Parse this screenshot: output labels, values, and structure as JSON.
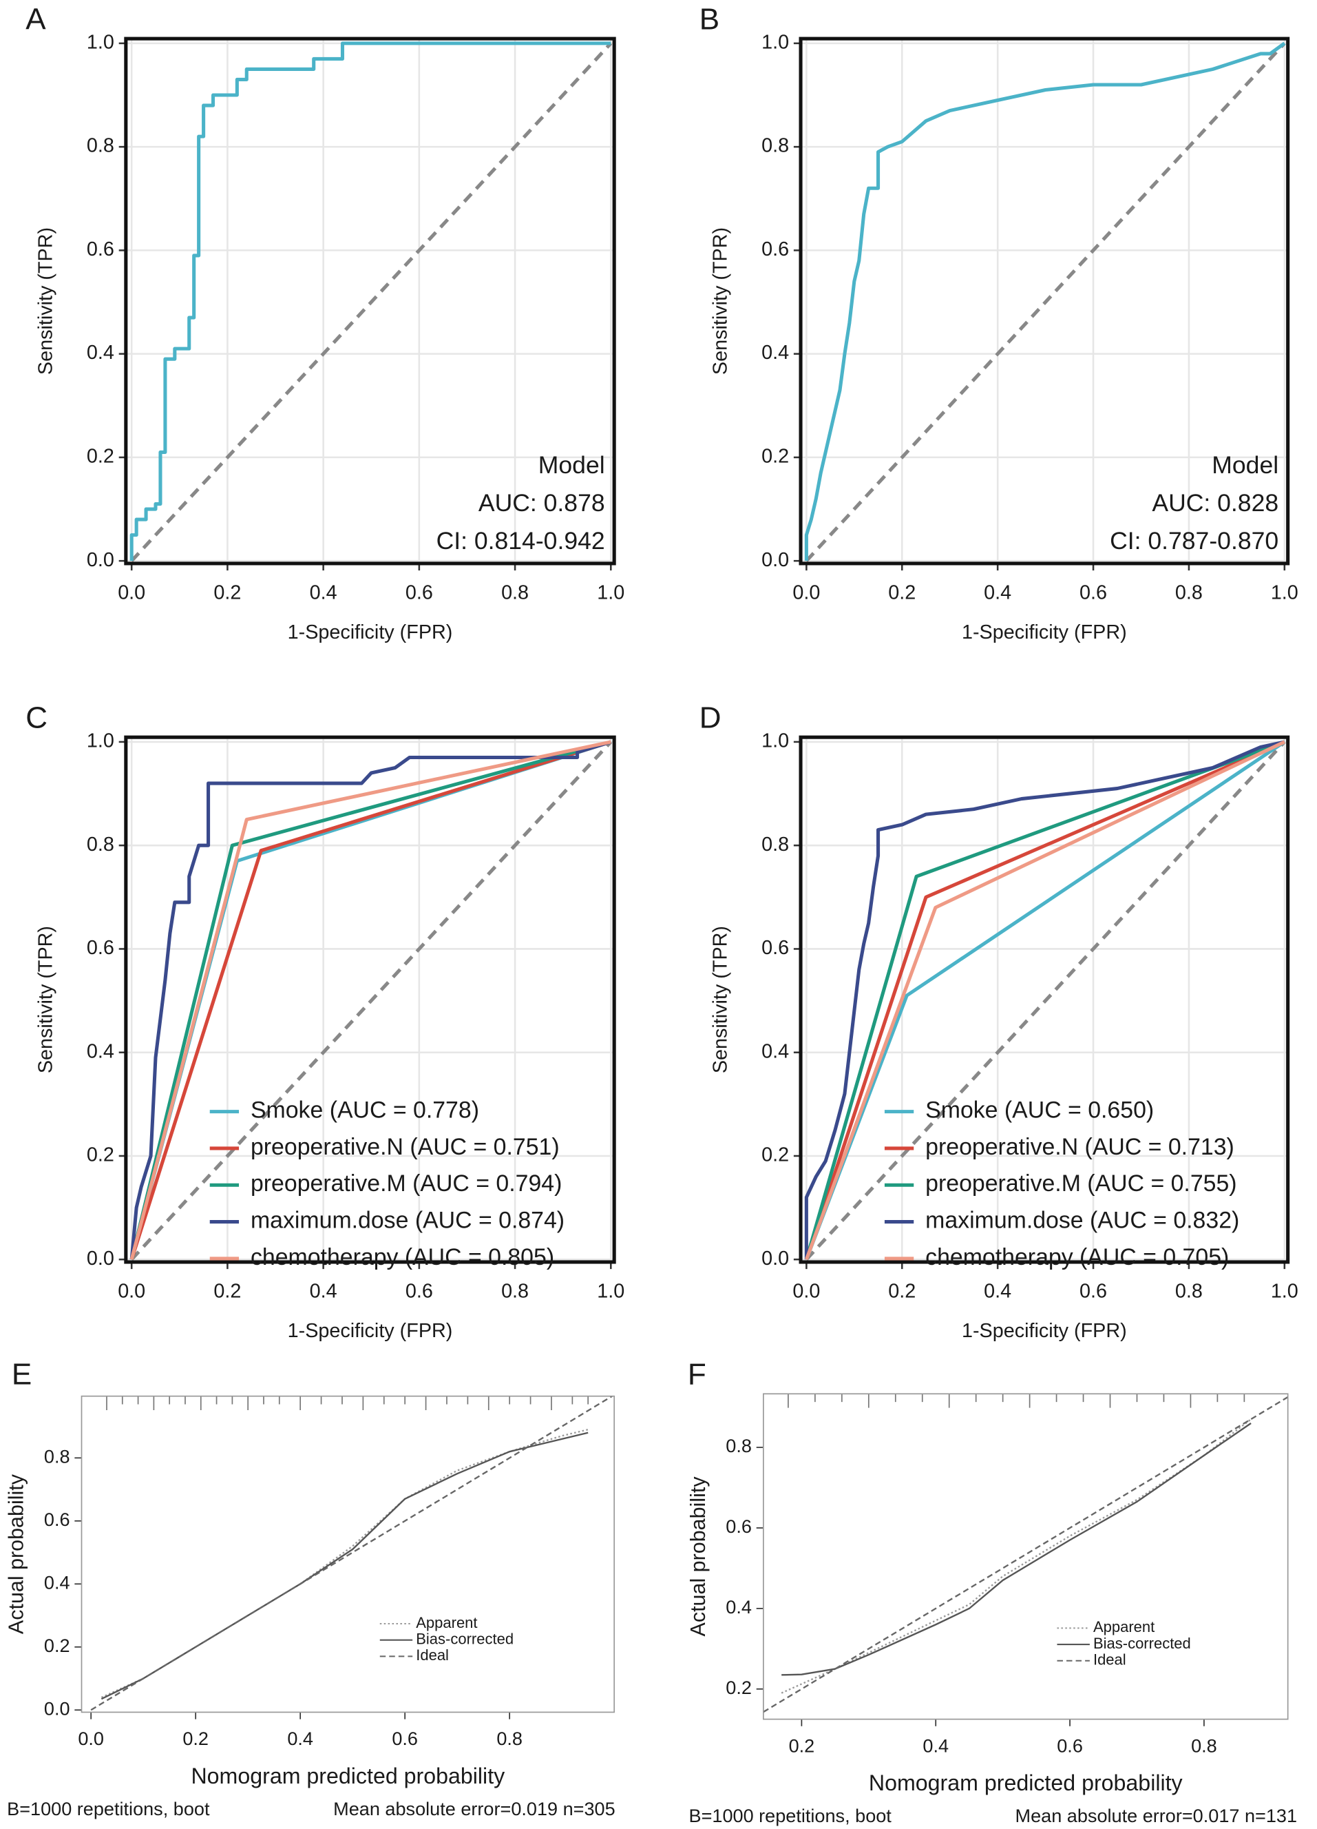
{
  "chart_data": [
    {
      "type": "line",
      "panel": "A",
      "frame": "heavy",
      "grid": true,
      "reference_line": true,
      "xlabel": "1-Specificity (FPR)",
      "ylabel": "Sensitivity (TPR)",
      "xlim": [
        -0.012,
        1.007
      ],
      "ylim": [
        -0.005,
        1.009
      ],
      "xticks": [
        {
          "value": 0,
          "label": "0.0"
        },
        0.2,
        0.4,
        0.6,
        0.8,
        {
          "value": 1,
          "label": "1.0"
        }
      ],
      "yticks": [
        {
          "value": 0,
          "label": "0.0"
        },
        0.2,
        0.4,
        0.6,
        0.8,
        {
          "value": 1,
          "label": "1.0"
        }
      ],
      "annotations": [
        "Model",
        "AUC: 0.878",
        "CI: 0.814-0.942"
      ],
      "series": [
        {
          "color": "#4bb3c8",
          "x": [
            0,
            0,
            0.01,
            0.01,
            0.03,
            0.03,
            0.05,
            0.05,
            0.06,
            0.06,
            0.07,
            0.07,
            0.09,
            0.09,
            0.12,
            0.12,
            0.13,
            0.13,
            0.14,
            0.14,
            0.15,
            0.15,
            0.17,
            0.17,
            0.22,
            0.22,
            0.24,
            0.24,
            0.38,
            0.38,
            0.44,
            0.44,
            1
          ],
          "values": [
            0,
            0.05,
            0.05,
            0.08,
            0.08,
            0.1,
            0.1,
            0.11,
            0.11,
            0.21,
            0.21,
            0.39,
            0.39,
            0.41,
            0.41,
            0.47,
            0.47,
            0.59,
            0.59,
            0.82,
            0.82,
            0.88,
            0.88,
            0.9,
            0.9,
            0.93,
            0.93,
            0.95,
            0.95,
            0.97,
            0.97,
            1,
            1
          ]
        }
      ]
    },
    {
      "type": "line",
      "panel": "B",
      "frame": "heavy",
      "grid": true,
      "reference_line": true,
      "xlabel": "1-Specificity (FPR)",
      "ylabel": "Sensitivity (TPR)",
      "xlim": [
        -0.012,
        1.007
      ],
      "ylim": [
        -0.005,
        1.009
      ],
      "xticks": [
        {
          "value": 0,
          "label": "0.0"
        },
        0.2,
        0.4,
        0.6,
        0.8,
        {
          "value": 1,
          "label": "1.0"
        }
      ],
      "yticks": [
        {
          "value": 0,
          "label": "0.0"
        },
        0.2,
        0.4,
        0.6,
        0.8,
        {
          "value": 1,
          "label": "1.0"
        }
      ],
      "annotations": [
        "Model",
        "AUC: 0.828",
        "CI: 0.787-0.870"
      ],
      "series": [
        {
          "color": "#4bb3c8",
          "x": [
            0,
            0,
            0.01,
            0.02,
            0.03,
            0.04,
            0.05,
            0.06,
            0.07,
            0.08,
            0.09,
            0.1,
            0.11,
            0.12,
            0.13,
            0.15,
            0.15,
            0.17,
            0.2,
            0.25,
            0.3,
            0.4,
            0.5,
            0.6,
            0.7,
            0.75,
            0.85,
            0.95,
            0.97,
            1
          ],
          "values": [
            0,
            0.05,
            0.08,
            0.12,
            0.17,
            0.21,
            0.25,
            0.29,
            0.33,
            0.4,
            0.46,
            0.54,
            0.58,
            0.67,
            0.72,
            0.72,
            0.79,
            0.8,
            0.81,
            0.85,
            0.87,
            0.89,
            0.91,
            0.92,
            0.92,
            0.93,
            0.95,
            0.98,
            0.98,
            1
          ]
        }
      ]
    },
    {
      "type": "line",
      "panel": "C",
      "frame": "heavy",
      "grid": true,
      "reference_line": true,
      "legend": "bottom-left",
      "xlabel": "1-Specificity (FPR)",
      "ylabel": "Sensitivity (TPR)",
      "xlim": [
        -0.012,
        1.007
      ],
      "ylim": [
        -0.005,
        1.009
      ],
      "xticks": [
        {
          "value": 0,
          "label": "0.0"
        },
        0.2,
        0.4,
        0.6,
        0.8,
        {
          "value": 1,
          "label": "1.0"
        }
      ],
      "yticks": [
        {
          "value": 0,
          "label": "0.0"
        },
        0.2,
        0.4,
        0.6,
        0.8,
        {
          "value": 1,
          "label": "1.0"
        }
      ],
      "series": [
        {
          "name": "Smoke (AUC = 0.778)",
          "color": "#4bb3c8",
          "x": [
            0,
            0.22,
            1
          ],
          "values": [
            0,
            0.77,
            1
          ]
        },
        {
          "name": "preoperative.N (AUC = 0.751)",
          "color": "#d6473a",
          "x": [
            0,
            0.27,
            1
          ],
          "values": [
            0,
            0.79,
            1
          ]
        },
        {
          "name": "preoperative.M (AUC = 0.794)",
          "color": "#1f9a7f",
          "x": [
            0,
            0.21,
            1
          ],
          "values": [
            0,
            0.8,
            1
          ]
        },
        {
          "name": "maximum.dose (AUC = 0.874)",
          "color": "#3a4a8c",
          "x": [
            0,
            0.01,
            0.02,
            0.04,
            0.05,
            0.07,
            0.08,
            0.09,
            0.12,
            0.12,
            0.14,
            0.16,
            0.16,
            0.48,
            0.5,
            0.55,
            0.58,
            0.93,
            0.93,
            1
          ],
          "values": [
            0,
            0.1,
            0.14,
            0.2,
            0.39,
            0.54,
            0.63,
            0.69,
            0.69,
            0.74,
            0.8,
            0.8,
            0.92,
            0.92,
            0.94,
            0.95,
            0.97,
            0.97,
            0.98,
            1
          ]
        },
        {
          "name": "chemotherapy (AUC = 0.805)",
          "color": "#ef9a85",
          "x": [
            0,
            0.24,
            1
          ],
          "values": [
            0,
            0.85,
            1
          ]
        }
      ]
    },
    {
      "type": "line",
      "panel": "D",
      "frame": "heavy",
      "grid": true,
      "reference_line": true,
      "legend": "bottom-left",
      "xlabel": "1-Specificity (FPR)",
      "ylabel": "Sensitivity (TPR)",
      "xlim": [
        -0.012,
        1.007
      ],
      "ylim": [
        -0.005,
        1.009
      ],
      "xticks": [
        {
          "value": 0,
          "label": "0.0"
        },
        0.2,
        0.4,
        0.6,
        0.8,
        {
          "value": 1,
          "label": "1.0"
        }
      ],
      "yticks": [
        {
          "value": 0,
          "label": "0.0"
        },
        0.2,
        0.4,
        0.6,
        0.8,
        {
          "value": 1,
          "label": "1.0"
        }
      ],
      "series": [
        {
          "name": "Smoke (AUC = 0.650)",
          "color": "#4bb3c8",
          "x": [
            0,
            0.21,
            1
          ],
          "values": [
            0,
            0.51,
            1
          ]
        },
        {
          "name": "preoperative.N (AUC = 0.713)",
          "color": "#d6473a",
          "x": [
            0,
            0.25,
            1
          ],
          "values": [
            0,
            0.7,
            1
          ]
        },
        {
          "name": "preoperative.M (AUC = 0.755)",
          "color": "#1f9a7f",
          "x": [
            0,
            0.23,
            1
          ],
          "values": [
            0,
            0.74,
            1
          ]
        },
        {
          "name": "maximum.dose (AUC = 0.832)",
          "color": "#3a4a8c",
          "x": [
            0,
            0,
            0.02,
            0.04,
            0.06,
            0.08,
            0.09,
            0.1,
            0.11,
            0.12,
            0.13,
            0.14,
            0.15,
            0.15,
            0.2,
            0.25,
            0.35,
            0.45,
            0.55,
            0.65,
            0.75,
            0.85,
            0.95,
            1
          ],
          "values": [
            0,
            0.12,
            0.16,
            0.19,
            0.25,
            0.32,
            0.4,
            0.48,
            0.56,
            0.61,
            0.65,
            0.72,
            0.78,
            0.83,
            0.84,
            0.86,
            0.87,
            0.89,
            0.9,
            0.91,
            0.93,
            0.95,
            0.99,
            1
          ]
        },
        {
          "name": "chemotherapy (AUC = 0.705)",
          "color": "#ef9a85",
          "x": [
            0,
            0.27,
            1
          ],
          "values": [
            0,
            0.68,
            1
          ]
        }
      ]
    },
    {
      "type": "line",
      "panel": "E",
      "frame": "light",
      "grid": false,
      "legend": "center-right",
      "xlabel": "Nomogram predicted probability",
      "ylabel": "Actual probability",
      "xlim": [
        -0.018,
        1.0
      ],
      "ylim": [
        -0.007,
        0.996
      ],
      "xticks": [
        {
          "value": 0,
          "label": "0.0"
        },
        0.2,
        0.4,
        0.6,
        0.8
      ],
      "yticks": [
        {
          "value": 0,
          "label": "0.0"
        },
        0.2,
        0.4,
        0.6,
        0.8
      ],
      "rug": [
        0.03,
        0.06,
        0.09,
        0.12,
        0.15,
        0.18,
        0.21,
        0.24,
        0.27,
        0.3,
        0.33,
        0.36,
        0.4,
        0.44,
        0.48,
        0.52,
        0.56,
        0.6,
        0.64,
        0.68,
        0.72,
        0.76,
        0.8,
        0.84,
        0.88,
        0.92,
        0.95
      ],
      "footnotes": [
        "B=1000 repetitions, boot",
        "Mean absolute error=0.019 n=305"
      ],
      "series": [
        {
          "name": "Apparent",
          "color": "#999999",
          "dash": "dotted",
          "x": [
            0.02,
            0.1,
            0.2,
            0.3,
            0.4,
            0.5,
            0.6,
            0.7,
            0.8,
            0.9,
            0.95
          ],
          "values": [
            0.04,
            0.1,
            0.2,
            0.3,
            0.4,
            0.52,
            0.67,
            0.76,
            0.82,
            0.87,
            0.89
          ]
        },
        {
          "name": "Bias-corrected",
          "color": "#555555",
          "dash": "solid",
          "x": [
            0.02,
            0.1,
            0.2,
            0.3,
            0.4,
            0.5,
            0.6,
            0.7,
            0.8,
            0.9,
            0.95
          ],
          "values": [
            0.035,
            0.1,
            0.2,
            0.3,
            0.4,
            0.51,
            0.67,
            0.75,
            0.82,
            0.86,
            0.88
          ]
        },
        {
          "name": "Ideal",
          "color": "#666666",
          "dash": "dashed",
          "x": [
            0,
            1
          ],
          "values": [
            0,
            1
          ]
        }
      ]
    },
    {
      "type": "line",
      "panel": "F",
      "frame": "light",
      "grid": false,
      "legend": "center-right",
      "xlabel": "Nomogram predicted probability",
      "ylabel": "Actual probability",
      "xlim": [
        0.143,
        0.925
      ],
      "ylim": [
        0.125,
        0.933
      ],
      "xticks": [
        0.2,
        0.4,
        0.6,
        0.8
      ],
      "yticks": [
        0.2,
        0.4,
        0.6,
        0.8
      ],
      "rug": [
        0.18,
        0.22,
        0.26,
        0.3,
        0.34,
        0.38,
        0.42,
        0.46,
        0.5,
        0.54,
        0.58,
        0.62,
        0.66,
        0.7,
        0.74,
        0.78,
        0.82,
        0.86
      ],
      "footnotes": [
        "B=1000 repetitions, boot",
        "Mean absolute error=0.017 n=131"
      ],
      "series": [
        {
          "name": "Apparent",
          "color": "#999999",
          "dash": "dotted",
          "x": [
            0.17,
            0.25,
            0.3,
            0.4,
            0.45,
            0.5,
            0.6,
            0.7,
            0.8,
            0.87
          ],
          "values": [
            0.19,
            0.25,
            0.29,
            0.37,
            0.41,
            0.48,
            0.58,
            0.67,
            0.78,
            0.87
          ]
        },
        {
          "name": "Bias-corrected",
          "color": "#555555",
          "dash": "solid",
          "x": [
            0.17,
            0.2,
            0.25,
            0.3,
            0.4,
            0.45,
            0.5,
            0.6,
            0.7,
            0.8,
            0.87
          ],
          "values": [
            0.235,
            0.236,
            0.25,
            0.285,
            0.36,
            0.4,
            0.47,
            0.57,
            0.665,
            0.78,
            0.86
          ]
        },
        {
          "name": "Ideal",
          "color": "#666666",
          "dash": "dashed",
          "x": [
            0,
            1
          ],
          "values": [
            0,
            1
          ]
        }
      ]
    }
  ]
}
